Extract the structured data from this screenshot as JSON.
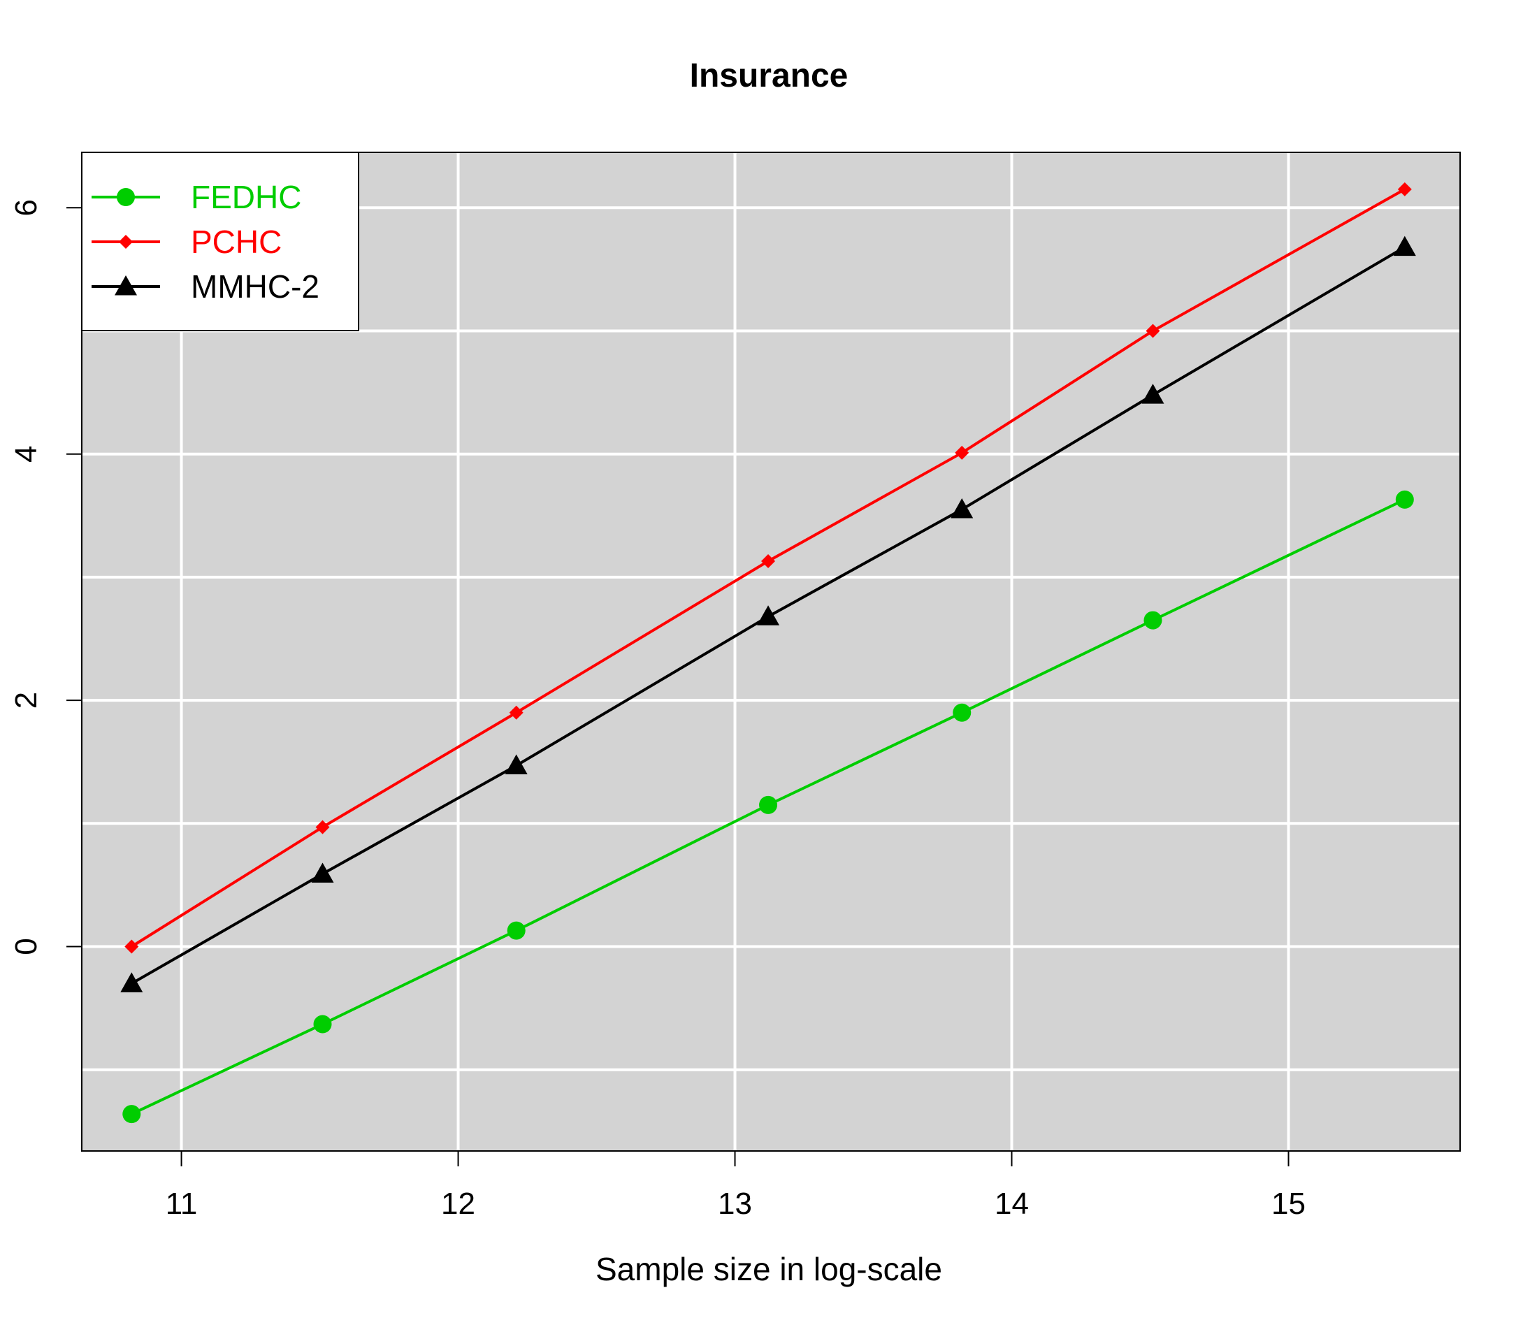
{
  "chart_data": {
    "type": "line",
    "title": "Insurance",
    "xlabel": "Sample size in log-scale",
    "ylabel": "",
    "xlim": [
      10.64,
      15.62
    ],
    "ylim": [
      -1.66,
      6.45
    ],
    "xticks": [
      11,
      12,
      13,
      14,
      15
    ],
    "yticks": [
      0,
      2,
      4,
      6
    ],
    "x_minor_grid": [
      11,
      12,
      13,
      14,
      15
    ],
    "y_minor_grid": [
      -1,
      1,
      3,
      5
    ],
    "grid": true,
    "background": "#d3d3d3",
    "grid_color": "#ffffff",
    "legend_position": "top-left",
    "series": [
      {
        "name": "FEDHC",
        "color": "#00cd00",
        "marker": "circle",
        "x": [
          10.82,
          11.51,
          12.21,
          13.12,
          13.82,
          14.51,
          15.42
        ],
        "values": [
          -1.36,
          -0.63,
          0.13,
          1.15,
          1.9,
          2.65,
          3.63
        ]
      },
      {
        "name": "PCHC",
        "color": "#ff0000",
        "marker": "diamond",
        "x": [
          10.82,
          11.51,
          12.21,
          13.12,
          13.82,
          14.51,
          15.42
        ],
        "values": [
          0.0,
          0.97,
          1.9,
          3.13,
          4.01,
          5.0,
          6.15
        ]
      },
      {
        "name": "MMHC-2",
        "color": "#000000",
        "marker": "triangle",
        "x": [
          10.82,
          11.51,
          12.21,
          13.12,
          13.82,
          14.51,
          15.42
        ],
        "values": [
          -0.3,
          0.59,
          1.47,
          2.68,
          3.55,
          4.48,
          5.68
        ]
      }
    ]
  }
}
